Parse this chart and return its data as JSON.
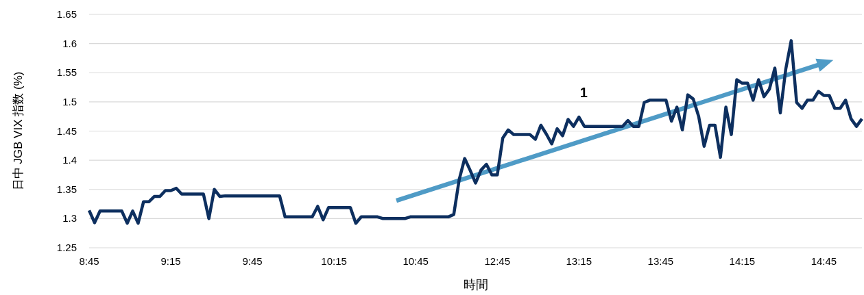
{
  "chart_data": {
    "type": "line",
    "xlabel": "時間",
    "ylabel": "日中 JGB VIX 指数 (%)",
    "categories": [
      "8:45",
      null,
      null,
      null,
      null,
      null,
      null,
      null,
      null,
      null,
      null,
      null,
      null,
      null,
      null,
      "9:15",
      null,
      null,
      null,
      null,
      null,
      null,
      null,
      null,
      null,
      null,
      null,
      null,
      null,
      null,
      "9:45",
      null,
      null,
      null,
      null,
      null,
      null,
      null,
      null,
      null,
      null,
      null,
      null,
      null,
      null,
      "10:15",
      null,
      null,
      null,
      null,
      null,
      null,
      null,
      null,
      null,
      null,
      null,
      null,
      null,
      null,
      "10:45",
      null,
      null,
      null,
      null,
      null,
      null,
      null,
      null,
      null,
      null,
      null,
      null,
      null,
      null,
      "12:45",
      null,
      null,
      null,
      null,
      null,
      null,
      null,
      null,
      null,
      null,
      null,
      null,
      null,
      null,
      "13:15",
      null,
      null,
      null,
      null,
      null,
      null,
      null,
      null,
      null,
      null,
      null,
      null,
      null,
      null,
      "13:45",
      null,
      null,
      null,
      null,
      null,
      null,
      null,
      null,
      null,
      null,
      null,
      null,
      null,
      null,
      "14:15",
      null,
      null,
      null,
      null,
      null,
      null,
      null,
      null,
      null,
      null,
      null,
      null,
      null,
      null,
      "14:45",
      null,
      null,
      null,
      null,
      null,
      null,
      null
    ],
    "ylim": [
      1.25,
      1.65
    ],
    "yticks": [
      1.25,
      1.3,
      1.35,
      1.4,
      1.45,
      1.5,
      1.55,
      1.6,
      1.65
    ],
    "grid": "y",
    "annotations": [
      "1"
    ],
    "series": [
      {
        "color": "#0d2f5f",
        "values": [
          1.314,
          1.293,
          1.313,
          1.313,
          1.313,
          1.313,
          1.313,
          1.292,
          1.313,
          1.292,
          1.329,
          1.329,
          1.338,
          1.338,
          1.348,
          1.348,
          1.352,
          1.342,
          1.342,
          1.342,
          1.342,
          1.342,
          1.3,
          1.35,
          1.338,
          1.339,
          1.339,
          1.339,
          1.339,
          1.339,
          1.339,
          1.339,
          1.339,
          1.339,
          1.339,
          1.339,
          1.303,
          1.303,
          1.303,
          1.303,
          1.303,
          1.303,
          1.321,
          1.298,
          1.319,
          1.319,
          1.319,
          1.319,
          1.319,
          1.292,
          1.303,
          1.303,
          1.303,
          1.303,
          1.3,
          1.3,
          1.3,
          1.3,
          1.3,
          1.303,
          1.303,
          1.303,
          1.303,
          1.303,
          1.303,
          1.303,
          1.303,
          1.307,
          1.367,
          1.403,
          1.383,
          1.361,
          1.383,
          1.393,
          1.375,
          1.375,
          1.438,
          1.452,
          1.444,
          1.444,
          1.444,
          1.444,
          1.436,
          1.46,
          1.445,
          1.428,
          1.454,
          1.442,
          1.47,
          1.458,
          1.474,
          1.458,
          1.458,
          1.458,
          1.458,
          1.458,
          1.458,
          1.458,
          1.458,
          1.468,
          1.458,
          1.458,
          1.499,
          1.503,
          1.503,
          1.503,
          1.503,
          1.467,
          1.491,
          1.452,
          1.512,
          1.505,
          1.475,
          1.424,
          1.46,
          1.46,
          1.405,
          1.491,
          1.444,
          1.538,
          1.532,
          1.532,
          1.503,
          1.538,
          1.509,
          1.522,
          1.558,
          1.481,
          1.556,
          1.605,
          1.499,
          1.489,
          1.503,
          1.503,
          1.518,
          1.511,
          1.511,
          1.489,
          1.489,
          1.503,
          1.471,
          1.458,
          1.471
        ]
      }
    ]
  }
}
